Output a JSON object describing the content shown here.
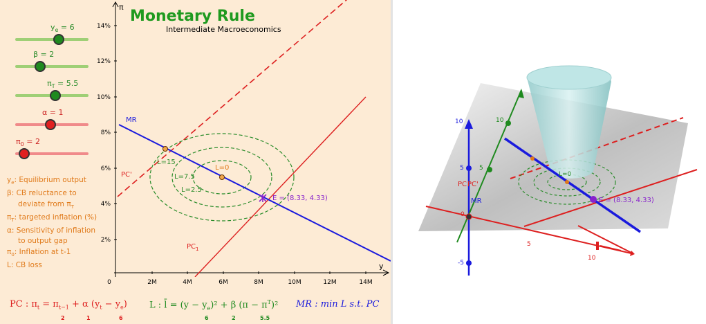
{
  "graph2d": {
    "title": "Monetary Rule",
    "subtitle": "Intermediate Macroeconomics",
    "y_axis_label": "π",
    "x_axis_label": "y",
    "y_ticks": [
      "14%",
      "12%",
      "10%",
      "8%",
      "6%",
      "4%",
      "2%"
    ],
    "x_ticks": [
      "0",
      "2M",
      "4M",
      "6M",
      "8M",
      "10M",
      "12M",
      "14M"
    ],
    "mr_label": "MR",
    "pc_prime_label": "PC'",
    "pc1_label": "PC",
    "pc1_sub": "1",
    "loss_labels": [
      "L=15",
      "L=7.5",
      "L=2.5",
      "L=0"
    ],
    "equilibrium_label": "E = (8.33, 4.33)"
  },
  "sliders": [
    {
      "name": "y_e",
      "label": "y",
      "sub": "e",
      "value": "6",
      "color": "green",
      "position": 0.58
    },
    {
      "name": "beta",
      "label": "β",
      "sub": "",
      "value": "2",
      "color": "green",
      "position": 0.32
    },
    {
      "name": "pi_T",
      "label": "π",
      "sub": "T",
      "value": "5.5",
      "color": "green",
      "position": 0.54
    },
    {
      "name": "alpha",
      "label": "α",
      "sub": "",
      "value": "1",
      "color": "red",
      "position": 0.48
    },
    {
      "name": "pi_0",
      "label": "π",
      "sub": "0",
      "value": "2",
      "color": "red",
      "position": 0.1
    }
  ],
  "legend": {
    "l1a": "y",
    "l1b": "e",
    "l1c": ": Equilibrium output",
    "l2": "β: CB reluctance to",
    "l3a": "deviate from π",
    "l3b": "T",
    "l4a": "π",
    "l4b": "T",
    "l4c": ": targeted inflation (%)",
    "l5": "α: Sensitivity of inflation",
    "l6": "to output gap",
    "l7a": "π",
    "l7b": "0",
    "l7c": ": Inflation at t-1",
    "l8": "L: CB loss"
  },
  "formulas": {
    "pc": "PC : π",
    "pc_rest": " = π",
    "pc_rest2": " + α (y",
    "pc_rest3": " − y",
    "pc_rest4": ")",
    "pc_vals": [
      "2",
      "1",
      "6"
    ],
    "l": "L : l̄ = (y − y",
    "l_rest": ")² + β (π − π",
    "l_rest2": ")²",
    "l_vals": [
      "6",
      "2",
      "5.5"
    ],
    "mr": "MR : min L s.t. PC"
  },
  "graph3d": {
    "z_ticks": [
      "10",
      "5",
      "-5"
    ],
    "x_ticks": [
      "5",
      "10"
    ],
    "y_ticks": [
      "10",
      "5"
    ],
    "origin": "0",
    "mr_label": "MR",
    "pc_label": "PC",
    "pc_prime_label": "PC'",
    "loss_label": "L=0",
    "equilibrium_label": "E = (8.33, 4.33)"
  },
  "colors": {
    "green": "#1f8a1f",
    "red": "#dd1f1f",
    "blue": "#1a1add",
    "orange": "#e07a1a",
    "purple": "#8822cc",
    "panel_bg": "#fdebd5"
  }
}
